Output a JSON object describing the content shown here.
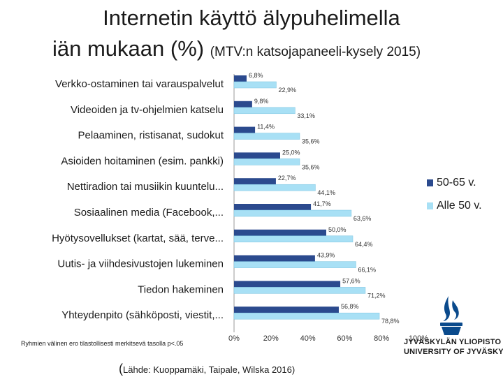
{
  "title": {
    "line1": "Internetin käyttö älypuhelimella",
    "line2": "iän mukaan (%)",
    "subtitle": "(MTV:n katsojapaneeli-kysely 2015)"
  },
  "footnote": "Ryhmien välinen ero tilastollisesti merkitsevä tasolla p<.05",
  "source": {
    "open_paren": "(",
    "text": "Lähde: Kuoppamäki, Taipale, Wilska 2016)"
  },
  "logo": {
    "line1": "JYVÄSKYLÄN YLIOPISTO",
    "line2": "UNIVERSITY OF JYVÄSKYLÄ",
    "icon": "flame-icon",
    "color": "#0a4a8c"
  },
  "chart_data": {
    "type": "bar",
    "orientation": "horizontal",
    "categories": [
      "Verkko-ostaminen tai varauspalvelut",
      "Videoiden ja tv-ohjelmien katselu",
      "Pelaaminen, ristisanat, sudokut",
      "Asioiden hoitaminen (esim. pankki)",
      "Nettiradion tai musiikin kuuntelu...",
      "Sosiaalinen media (Facebook,...",
      "Hyötysovellukset (kartat, sää, terve...",
      "Uutis- ja viihdesivustojen lukeminen",
      "Tiedon hakeminen",
      "Yhteydenpito (sähköposti, viestit,..."
    ],
    "series": [
      {
        "name": "50-65 v.",
        "color": "#2b4a8e",
        "values": [
          6.8,
          9.8,
          11.4,
          25.0,
          22.7,
          41.7,
          50.0,
          43.9,
          57.6,
          56.8
        ],
        "labels": [
          "6,8%",
          "9,8%",
          "11,4%",
          "25,0%",
          "22,7%",
          "41,7%",
          "50,0%",
          "43,9%",
          "57,6%",
          "56,8%"
        ]
      },
      {
        "name": "Alle 50 v.",
        "color": "#a8e0f5",
        "values": [
          22.9,
          33.1,
          35.6,
          35.6,
          44.1,
          63.6,
          64.4,
          66.1,
          71.2,
          78.8
        ],
        "labels": [
          "22,9%",
          "33,1%",
          "35,6%",
          "35,6%",
          "44,1%",
          "63,6%",
          "64,4%",
          "66,1%",
          "71,2%",
          "78,8%"
        ]
      }
    ],
    "x_ticks": [
      "0%",
      "20%",
      "40%",
      "60%",
      "80%",
      "100%"
    ],
    "xlim": [
      0,
      100
    ],
    "grid": false,
    "legend_position": "right"
  }
}
